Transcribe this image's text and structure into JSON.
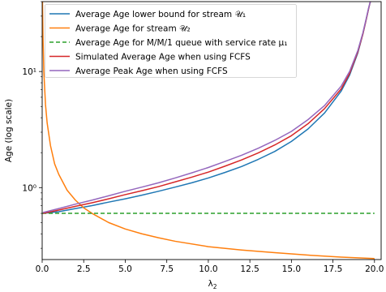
{
  "chart_data": {
    "type": "line",
    "xlabel": "λ",
    "xlabel_sub": "2",
    "ylabel": "Age (log scale)",
    "yscale": "log",
    "xlim": [
      0,
      20.4
    ],
    "ylim": [
      0.24,
      40
    ],
    "grid": false,
    "legend_position": "top-left",
    "x_ticks": [
      0,
      2.5,
      5,
      7.5,
      10,
      12.5,
      15,
      17.5,
      20
    ],
    "x_tick_labels": [
      "0.0",
      "2.5",
      "5.0",
      "7.5",
      "10.0",
      "12.5",
      "15.0",
      "17.5",
      "20.0"
    ],
    "y_ticks": [
      1,
      10
    ],
    "y_tick_labels": [
      "10⁰",
      "10¹"
    ],
    "series": [
      {
        "name": "Average Age lower bound for stream 𝒰₁",
        "color": "#1f77b4",
        "style": "solid",
        "x": [
          0.05,
          1,
          2,
          3,
          4,
          5,
          6,
          7,
          8,
          9,
          10,
          11,
          12,
          13,
          14,
          15,
          16,
          17,
          18,
          18.5,
          19,
          19.3,
          19.5,
          19.65,
          19.75
        ],
        "y": [
          0.6,
          0.62,
          0.66,
          0.7,
          0.75,
          0.8,
          0.86,
          0.93,
          1.01,
          1.1,
          1.21,
          1.35,
          1.52,
          1.75,
          2.05,
          2.5,
          3.2,
          4.4,
          6.8,
          9.3,
          14.5,
          21,
          28,
          35,
          40
        ]
      },
      {
        "name": "Average Age for stream 𝒰₂",
        "color": "#ff7f0e",
        "style": "solid",
        "x": [
          0.02,
          0.05,
          0.1,
          0.2,
          0.3,
          0.5,
          0.75,
          1,
          1.5,
          2,
          2.5,
          3,
          4,
          5,
          6,
          7,
          8,
          10,
          12,
          14,
          16,
          18,
          20
        ],
        "y": [
          40,
          20,
          10,
          5.2,
          3.6,
          2.3,
          1.6,
          1.3,
          0.95,
          0.78,
          0.67,
          0.6,
          0.5,
          0.44,
          0.4,
          0.37,
          0.345,
          0.31,
          0.29,
          0.275,
          0.262,
          0.252,
          0.245
        ]
      },
      {
        "name": "Average Age for M/M/1 queue with service rate μ₁",
        "color": "#2ca02c",
        "style": "dashed",
        "x": [
          0,
          20
        ],
        "y": [
          0.6,
          0.6
        ]
      },
      {
        "name": "Simulated Average Age when using FCFS",
        "color": "#d62728",
        "style": "solid",
        "x": [
          0.05,
          1,
          2,
          3,
          4,
          5,
          6,
          7,
          8,
          9,
          10,
          11,
          12,
          13,
          14,
          15,
          16,
          17,
          18,
          18.5,
          19,
          19.3,
          19.5,
          19.65,
          19.75
        ],
        "y": [
          0.6,
          0.64,
          0.69,
          0.74,
          0.8,
          0.87,
          0.94,
          1.02,
          1.12,
          1.23,
          1.36,
          1.53,
          1.73,
          1.99,
          2.33,
          2.8,
          3.55,
          4.8,
          7.1,
          9.6,
          14.8,
          21,
          28,
          35,
          40
        ]
      },
      {
        "name": "Average Peak Age when using FCFS",
        "color": "#9467bd",
        "style": "solid",
        "x": [
          0.05,
          1,
          2,
          3,
          4,
          5,
          6,
          7,
          8,
          9,
          10,
          11,
          12,
          13,
          14,
          15,
          16,
          17,
          18,
          18.5,
          19,
          19.3,
          19.5,
          19.65,
          19.75
        ],
        "y": [
          0.61,
          0.66,
          0.72,
          0.78,
          0.85,
          0.93,
          1.01,
          1.1,
          1.21,
          1.34,
          1.49,
          1.68,
          1.9,
          2.18,
          2.55,
          3.05,
          3.85,
          5.1,
          7.5,
          10,
          15.2,
          21.5,
          28.5,
          35.5,
          40
        ]
      }
    ]
  }
}
